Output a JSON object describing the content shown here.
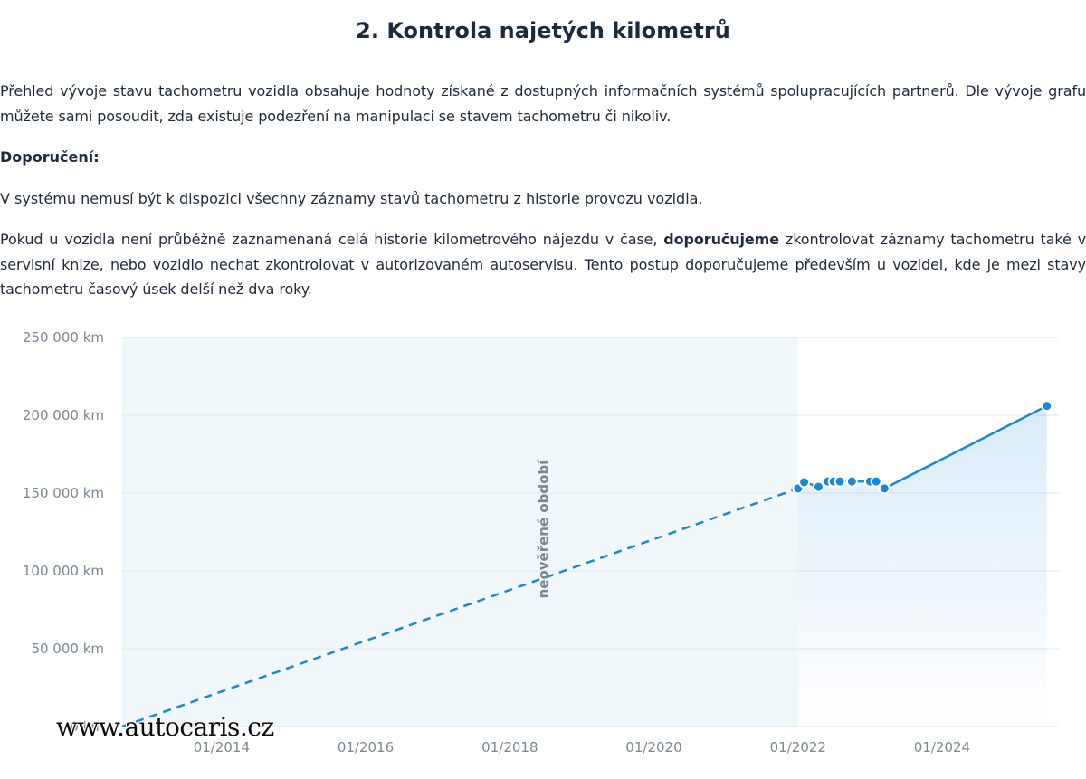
{
  "page": {
    "title": "2. Kontrola najetých kilometrů",
    "intro": "Přehled vývoje stavu tachometru vozidla obsahuje hodnoty získané z dostupných informačních systémů spolupracujících partnerů. Dle vývoje grafu můžete sami posoudit, zda existuje podezření na manipulaci se stavem tachometru či nikoliv.",
    "recommendation_heading": "Doporučení:",
    "recommendation_line1": "V systému nemusí být k dispozici všechny záznamy stavů tachometru z historie provozu vozidla.",
    "note_part1": "Pokud u vozidla není průběžně zaznamenaná celá historie kilometrového nájezdu v čase, ",
    "note_bold": "doporučujeme",
    "note_part2": " zkontrolovat záznamy tachometru také v servisní knize, nebo vozidlo nechat zkontrolovat v autorizovaném autoservisu. Tento postup doporučujeme především u vozidel, kde je mezi stavy tachometru časový úsek delší než dva roky.",
    "watermark": "www.autocaris.cz"
  },
  "colors": {
    "line": "#1b87d6",
    "point": "#1b87d6",
    "unverified_bg": "#f1f8fc",
    "grid": "#e3e8ee",
    "axis_text": "#7a8794"
  },
  "chart_data": {
    "type": "line",
    "y_tick_labels": [
      "250 000 km",
      "200 000 km",
      "150 000 km",
      "100 000 km",
      "50 000 km",
      "0 km"
    ],
    "y_ticks": [
      250000,
      200000,
      150000,
      100000,
      50000,
      0
    ],
    "ylim": [
      0,
      250000
    ],
    "x_tick_labels": [
      "01/2014",
      "01/2016",
      "01/2018",
      "01/2020",
      "01/2022",
      "01/2024"
    ],
    "x_ticks": [
      "2014-01-01",
      "2016-01-01",
      "2018-01-01",
      "2020-01-01",
      "2022-01-01",
      "2024-01-01"
    ],
    "xlim": [
      "2012-08-15",
      "2025-08-15"
    ],
    "unverified_period": {
      "label": "neověřené období",
      "start": "2012-08-15",
      "end": "2022-01-01"
    },
    "series": [
      {
        "style": "dashed",
        "points": [
          {
            "date": "2012-08-15",
            "value": 0
          },
          {
            "date": "2022-01-01",
            "value": 153000
          }
        ]
      },
      {
        "style": "solid",
        "points": [
          {
            "date": "2022-01-01",
            "value": 153000
          },
          {
            "date": "2022-02-01",
            "value": 157000
          },
          {
            "date": "2022-04-15",
            "value": 154000
          },
          {
            "date": "2022-06-01",
            "value": 157500
          },
          {
            "date": "2022-07-01",
            "value": 157500
          },
          {
            "date": "2022-08-01",
            "value": 157500
          },
          {
            "date": "2022-10-01",
            "value": 157500
          },
          {
            "date": "2023-01-01",
            "value": 157500
          },
          {
            "date": "2023-02-01",
            "value": 157500
          },
          {
            "date": "2023-03-15",
            "value": 153000
          },
          {
            "date": "2025-06-15",
            "value": 206000
          }
        ]
      }
    ],
    "grid": true,
    "legend": "none"
  }
}
